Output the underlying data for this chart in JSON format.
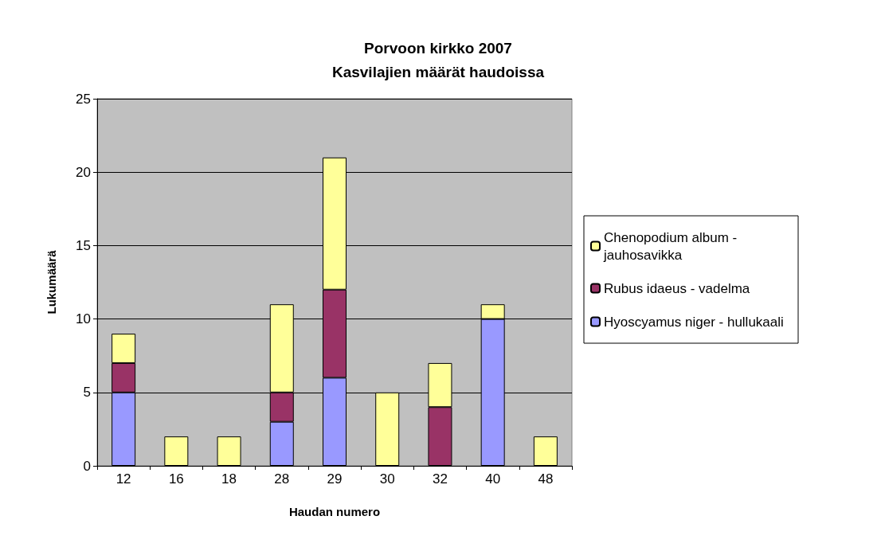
{
  "chart_data": {
    "type": "bar",
    "title": "Porvoon kirkko 2007\nKasvilajien määrät haudoissa",
    "xlabel": "Haudan numero",
    "ylabel": "Lukumäärä",
    "categories": [
      "12",
      "16",
      "18",
      "28",
      "29",
      "30",
      "32",
      "40",
      "48"
    ],
    "stacked": true,
    "series": [
      {
        "name": "Hyoscyamus niger - hullukaali",
        "color": "#9999ff",
        "values": [
          5,
          null,
          null,
          3,
          6,
          null,
          null,
          10,
          null
        ]
      },
      {
        "name": "Rubus idaeus - vadelma",
        "color": "#993366",
        "values": [
          2,
          null,
          null,
          2,
          6,
          null,
          4,
          null,
          null
        ]
      },
      {
        "name": "Chenopodium album - jauhosavikka",
        "color": "#ffff99",
        "values": [
          2,
          2,
          2,
          6,
          9,
          5,
          3,
          1,
          2
        ]
      }
    ],
    "ylim": [
      0,
      25
    ],
    "yticks": [
      0,
      5,
      10,
      15,
      20,
      25
    ],
    "grid": "y",
    "legend": "right"
  }
}
